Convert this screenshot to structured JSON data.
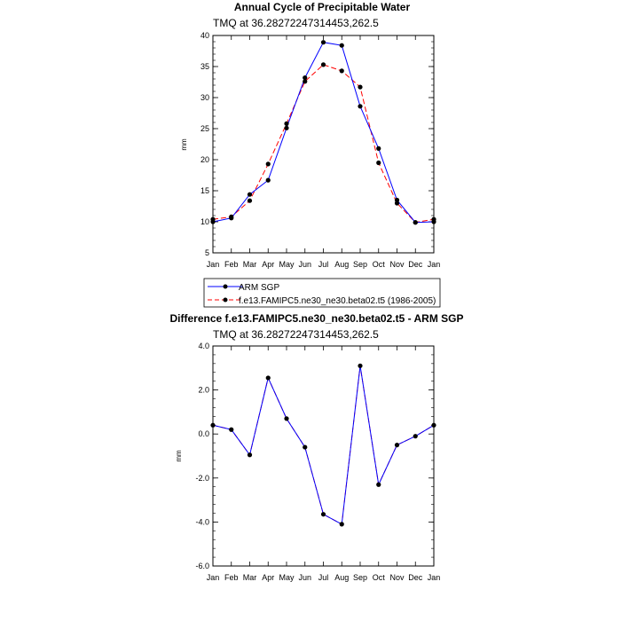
{
  "chart_data": [
    {
      "type": "line",
      "title": "Annual Cycle of Precipitable Water",
      "subtitle": "TMQ at 36.28272247314453,262.5",
      "ylabel": "mm",
      "ylim": [
        5,
        40
      ],
      "yticks": [
        "5",
        "10",
        "15",
        "20",
        "25",
        "30",
        "35",
        "40"
      ],
      "categories": [
        "Jan",
        "Feb",
        "Mar",
        "Apr",
        "May",
        "Jun",
        "Jul",
        "Aug",
        "Sep",
        "Oct",
        "Nov",
        "Dec",
        "Jan"
      ],
      "series": [
        {
          "name": "ARM SGP",
          "color": "#0000ff",
          "dash": "solid",
          "values": [
            10.0,
            10.6,
            14.4,
            16.7,
            25.1,
            33.2,
            38.9,
            38.4,
            28.6,
            21.8,
            13.5,
            9.9,
            10.0
          ]
        },
        {
          "name": "f.e13.FAMIPC5.ne30_ne30.beta02.t5 (1986-2005)",
          "color": "#ff0000",
          "dash": "dashed",
          "values": [
            10.4,
            10.8,
            13.4,
            19.3,
            25.8,
            32.6,
            35.3,
            34.3,
            31.7,
            19.5,
            13.0,
            9.9,
            10.4
          ]
        }
      ],
      "legend": "below"
    },
    {
      "type": "line",
      "title": "Difference f.e13.FAMIPC5.ne30_ne30.beta02.t5 - ARM SGP",
      "subtitle": "TMQ at 36.28272247314453,262.5",
      "ylabel": "mm",
      "ylim": [
        -6,
        4
      ],
      "yticks": [
        "-6.0",
        "-4.0",
        "-2.0",
        "0.0",
        "2.0",
        "4.0"
      ],
      "categories": [
        "Jan",
        "Feb",
        "Mar",
        "Apr",
        "May",
        "Jun",
        "Jul",
        "Aug",
        "Sep",
        "Oct",
        "Nov",
        "Dec",
        "Jan"
      ],
      "series": [
        {
          "color": "#0000ff",
          "dash": "solid",
          "values": [
            0.4,
            0.2,
            -0.95,
            2.55,
            0.7,
            -0.6,
            -3.65,
            -4.1,
            3.1,
            -2.3,
            -0.5,
            -0.1,
            0.4
          ]
        }
      ]
    }
  ]
}
